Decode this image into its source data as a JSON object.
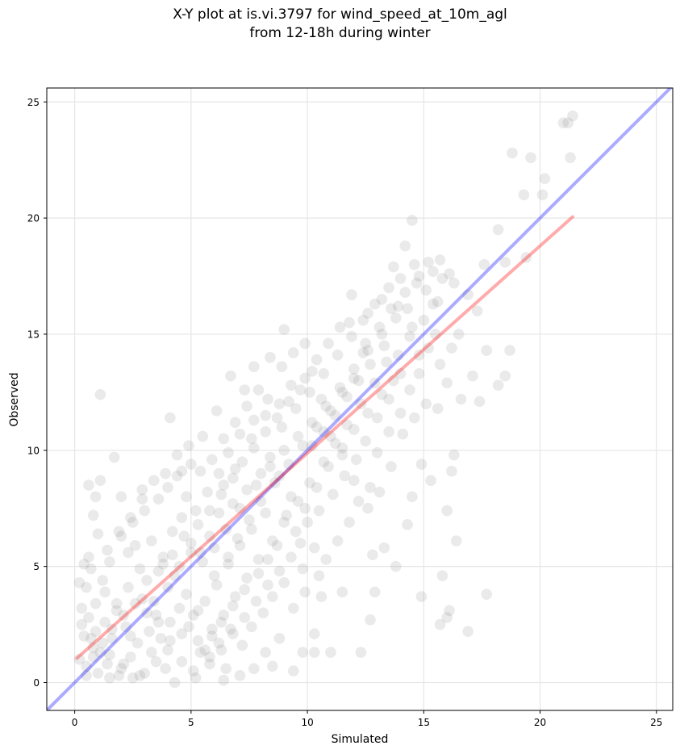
{
  "chart_data": {
    "type": "scatter",
    "title_lines": [
      "X-Y plot at is.vi.3797 for wind_speed_at_10m_agl",
      "from 12-18h during winter"
    ],
    "xlabel": "Simulated",
    "ylabel": "Observed",
    "xlim": [
      -1.2,
      25.7
    ],
    "ylim": [
      -1.2,
      25.6
    ],
    "xticks": [
      0,
      5,
      10,
      15,
      20,
      25
    ],
    "yticks": [
      0,
      5,
      10,
      15,
      20,
      25
    ],
    "grid": true,
    "marker_color": "#808080",
    "one_to_one_line": {
      "color": "#0000ff",
      "x": [
        -1.2,
        25.7
      ],
      "y": [
        -1.2,
        25.7
      ]
    },
    "fit_line": {
      "color": "#ff0000",
      "x": [
        0.1,
        21.4
      ],
      "y": [
        1.05,
        20.05
      ]
    },
    "points": [
      [
        1.1,
        12.4
      ],
      [
        1.7,
        9.7
      ],
      [
        0.6,
        8.5
      ],
      [
        0.9,
        8.0
      ],
      [
        1.1,
        8.7
      ],
      [
        0.8,
        7.2
      ],
      [
        2.0,
        8.0
      ],
      [
        2.9,
        8.3
      ],
      [
        0.4,
        5.1
      ],
      [
        0.7,
        4.9
      ],
      [
        1.2,
        4.4
      ],
      [
        1.5,
        5.2
      ],
      [
        2.3,
        5.6
      ],
      [
        0.3,
        3.2
      ],
      [
        0.6,
        2.8
      ],
      [
        0.9,
        2.2
      ],
      [
        1.3,
        2.6
      ],
      [
        1.8,
        3.1
      ],
      [
        2.4,
        2.0
      ],
      [
        0.2,
        1.0
      ],
      [
        0.5,
        0.7
      ],
      [
        1.0,
        0.4
      ],
      [
        1.5,
        1.2
      ],
      [
        2.1,
        0.8
      ],
      [
        2.8,
        0.3
      ],
      [
        3.3,
        1.3
      ],
      [
        3.9,
        0.6
      ],
      [
        4.3,
        0.0
      ],
      [
        5.1,
        0.5
      ],
      [
        5.6,
        1.4
      ],
      [
        6.4,
        0.1
      ],
      [
        0.4,
        2.0
      ],
      [
        0.8,
        1.5
      ],
      [
        1.6,
        1.9
      ],
      [
        2.2,
        2.4
      ],
      [
        2.9,
        3.6
      ],
      [
        3.5,
        2.9
      ],
      [
        3.1,
        4.4
      ],
      [
        2.6,
        5.9
      ],
      [
        3.8,
        5.1
      ],
      [
        4.2,
        6.5
      ],
      [
        4.6,
        7.1
      ],
      [
        5.0,
        6.0
      ],
      [
        5.4,
        5.6
      ],
      [
        5.8,
        6.3
      ],
      [
        6.2,
        7.3
      ],
      [
        4.1,
        11.4
      ],
      [
        4.6,
        9.1
      ],
      [
        5.0,
        9.4
      ],
      [
        5.5,
        10.6
      ],
      [
        6.1,
        11.7
      ],
      [
        6.7,
        13.2
      ],
      [
        7.3,
        12.6
      ],
      [
        7.7,
        13.6
      ],
      [
        6.9,
        9.2
      ],
      [
        6.4,
        8.5
      ],
      [
        6.8,
        7.7
      ],
      [
        7.4,
        8.3
      ],
      [
        8.0,
        9.0
      ],
      [
        8.4,
        9.7
      ],
      [
        7.6,
        10.5
      ],
      [
        8.2,
        11.5
      ],
      [
        8.8,
        12.0
      ],
      [
        9.3,
        12.8
      ],
      [
        9.0,
        15.2
      ],
      [
        9.9,
        14.6
      ],
      [
        10.2,
        13.4
      ],
      [
        10.6,
        12.2
      ],
      [
        11.0,
        11.7
      ],
      [
        11.5,
        12.5
      ],
      [
        12.0,
        13.1
      ],
      [
        12.4,
        14.2
      ],
      [
        11.8,
        15.5
      ],
      [
        12.6,
        15.9
      ],
      [
        13.2,
        16.5
      ],
      [
        13.7,
        17.9
      ],
      [
        14.2,
        18.8
      ],
      [
        14.5,
        19.9
      ],
      [
        13.9,
        16.2
      ],
      [
        14.7,
        17.2
      ],
      [
        15.2,
        18.1
      ],
      [
        15.8,
        17.4
      ],
      [
        16.3,
        17.2
      ],
      [
        15.5,
        15.0
      ],
      [
        16.5,
        15.0
      ],
      [
        14.8,
        14.1
      ],
      [
        14.0,
        13.3
      ],
      [
        13.5,
        12.2
      ],
      [
        13.0,
        11.4
      ],
      [
        12.5,
        10.4
      ],
      [
        12.1,
        9.6
      ],
      [
        11.6,
        8.9
      ],
      [
        11.1,
        8.1
      ],
      [
        10.5,
        7.4
      ],
      [
        10.0,
        6.9
      ],
      [
        9.5,
        6.5
      ],
      [
        9.1,
        7.2
      ],
      [
        8.7,
        5.9
      ],
      [
        8.3,
        5.3
      ],
      [
        7.9,
        4.7
      ],
      [
        7.3,
        4.0
      ],
      [
        6.8,
        3.3
      ],
      [
        6.3,
        2.6
      ],
      [
        5.9,
        2.0
      ],
      [
        5.4,
        1.3
      ],
      [
        6.0,
        4.6
      ],
      [
        6.6,
        5.4
      ],
      [
        7.0,
        6.2
      ],
      [
        7.5,
        7.0
      ],
      [
        8.0,
        7.8
      ],
      [
        8.6,
        8.6
      ],
      [
        9.2,
        9.4
      ],
      [
        9.8,
        10.2
      ],
      [
        10.4,
        11.0
      ],
      [
        11.0,
        10.6
      ],
      [
        11.5,
        9.8
      ],
      [
        12.0,
        8.7
      ],
      [
        12.6,
        7.5
      ],
      [
        13.1,
        8.2
      ],
      [
        13.6,
        9.3
      ],
      [
        14.1,
        10.7
      ],
      [
        14.6,
        11.4
      ],
      [
        15.1,
        12.0
      ],
      [
        15.6,
        11.8
      ],
      [
        16.0,
        12.9
      ],
      [
        16.6,
        12.2
      ],
      [
        17.1,
        13.2
      ],
      [
        17.4,
        12.1
      ],
      [
        17.7,
        14.3
      ],
      [
        18.2,
        12.8
      ],
      [
        18.5,
        13.2
      ],
      [
        18.7,
        14.3
      ],
      [
        17.3,
        16.0
      ],
      [
        16.9,
        16.7
      ],
      [
        17.6,
        18.0
      ],
      [
        18.2,
        19.5
      ],
      [
        18.5,
        18.1
      ],
      [
        19.4,
        18.3
      ],
      [
        19.3,
        21.0
      ],
      [
        20.1,
        21.0
      ],
      [
        20.2,
        21.7
      ],
      [
        18.8,
        22.8
      ],
      [
        19.6,
        22.6
      ],
      [
        21.3,
        22.6
      ],
      [
        21.0,
        24.1
      ],
      [
        21.2,
        24.1
      ],
      [
        21.4,
        24.4
      ],
      [
        16.2,
        9.1
      ],
      [
        16.3,
        9.8
      ],
      [
        16.4,
        6.1
      ],
      [
        16.0,
        7.4
      ],
      [
        15.3,
        8.7
      ],
      [
        14.9,
        9.4
      ],
      [
        14.5,
        8.0
      ],
      [
        14.3,
        6.8
      ],
      [
        13.8,
        5.0
      ],
      [
        13.3,
        5.8
      ],
      [
        12.9,
        3.9
      ],
      [
        12.8,
        5.5
      ],
      [
        12.7,
        2.7
      ],
      [
        12.3,
        1.3
      ],
      [
        11.5,
        3.9
      ],
      [
        11.0,
        1.3
      ],
      [
        10.3,
        2.1
      ],
      [
        10.3,
        1.3
      ],
      [
        9.8,
        1.3
      ],
      [
        9.4,
        0.5
      ],
      [
        9.9,
        3.9
      ],
      [
        10.5,
        4.6
      ],
      [
        10.6,
        3.7
      ],
      [
        14.9,
        3.7
      ],
      [
        15.7,
        2.5
      ],
      [
        16.0,
        2.8
      ],
      [
        16.1,
        3.1
      ],
      [
        15.8,
        4.6
      ],
      [
        16.9,
        2.2
      ],
      [
        17.7,
        3.8
      ],
      [
        2.0,
        6.3
      ],
      [
        2.5,
        6.9
      ],
      [
        3.0,
        7.4
      ],
      [
        3.6,
        7.9
      ],
      [
        4.0,
        8.4
      ],
      [
        4.4,
        8.9
      ],
      [
        4.8,
        8.0
      ],
      [
        5.2,
        7.4
      ],
      [
        5.7,
        8.2
      ],
      [
        6.2,
        9.0
      ],
      [
        6.6,
        9.9
      ],
      [
        7.1,
        10.7
      ],
      [
        7.7,
        11.3
      ],
      [
        8.3,
        12.2
      ],
      [
        8.9,
        11.0
      ],
      [
        9.5,
        11.8
      ],
      [
        10.1,
        12.5
      ],
      [
        10.7,
        13.3
      ],
      [
        11.3,
        14.1
      ],
      [
        11.9,
        14.9
      ],
      [
        12.5,
        14.6
      ],
      [
        13.1,
        15.3
      ],
      [
        13.6,
        16.1
      ],
      [
        14.2,
        16.8
      ],
      [
        14.8,
        17.5
      ],
      [
        15.4,
        16.3
      ],
      [
        13.4,
        13.8
      ],
      [
        12.9,
        12.9
      ],
      [
        12.3,
        12.0
      ],
      [
        11.7,
        11.1
      ],
      [
        11.2,
        10.3
      ],
      [
        10.7,
        9.5
      ],
      [
        10.1,
        8.6
      ],
      [
        9.6,
        7.8
      ],
      [
        9.0,
        6.9
      ],
      [
        8.5,
        6.1
      ],
      [
        7.9,
        5.3
      ],
      [
        7.4,
        4.5
      ],
      [
        6.9,
        3.7
      ],
      [
        6.4,
        2.9
      ],
      [
        5.9,
        2.3
      ],
      [
        5.3,
        3.1
      ],
      [
        4.8,
        3.8
      ],
      [
        4.3,
        4.6
      ],
      [
        3.8,
        5.4
      ],
      [
        3.3,
        6.1
      ],
      [
        2.8,
        4.9
      ],
      [
        2.3,
        4.1
      ],
      [
        1.8,
        3.4
      ],
      [
        1.3,
        3.9
      ],
      [
        0.9,
        3.4
      ],
      [
        0.5,
        4.1
      ],
      [
        0.3,
        2.5
      ],
      [
        0.7,
        1.9
      ],
      [
        1.1,
        1.3
      ],
      [
        1.4,
        0.8
      ],
      [
        1.9,
        0.3
      ],
      [
        2.4,
        1.1
      ],
      [
        2.7,
        1.7
      ],
      [
        3.2,
        2.2
      ],
      [
        3.7,
        1.9
      ],
      [
        4.1,
        2.6
      ],
      [
        4.5,
        3.2
      ],
      [
        4.9,
        2.4
      ],
      [
        5.3,
        1.8
      ],
      [
        5.8,
        1.1
      ],
      [
        6.2,
        1.7
      ],
      [
        6.7,
        2.3
      ],
      [
        7.2,
        1.6
      ],
      [
        7.6,
        2.4
      ],
      [
        8.1,
        3.0
      ],
      [
        8.5,
        3.7
      ],
      [
        9.0,
        4.3
      ],
      [
        9.4,
        3.2
      ],
      [
        9.8,
        4.9
      ],
      [
        8.8,
        1.9
      ],
      [
        8.2,
        1.3
      ],
      [
        7.7,
        0.6
      ],
      [
        8.5,
        0.7
      ],
      [
        7.1,
        0.3
      ],
      [
        6.5,
        0.6
      ],
      [
        3.4,
        3.5
      ],
      [
        4.0,
        4.1
      ],
      [
        4.5,
        5.0
      ],
      [
        5.0,
        5.6
      ],
      [
        5.5,
        5.2
      ],
      [
        6.0,
        5.8
      ],
      [
        6.5,
        6.6
      ],
      [
        7.1,
        7.5
      ],
      [
        7.8,
        8.5
      ],
      [
        8.4,
        9.3
      ],
      [
        9.0,
        10.0
      ],
      [
        9.6,
        10.6
      ],
      [
        10.2,
        11.2
      ],
      [
        10.8,
        11.9
      ],
      [
        11.4,
        12.7
      ],
      [
        12.0,
        13.5
      ],
      [
        12.6,
        14.3
      ],
      [
        13.2,
        15.0
      ],
      [
        13.8,
        15.7
      ],
      [
        14.4,
        14.9
      ],
      [
        15.0,
        15.6
      ],
      [
        15.6,
        16.4
      ],
      [
        16.1,
        17.6
      ],
      [
        15.7,
        18.2
      ],
      [
        14.6,
        18.0
      ],
      [
        14.0,
        17.4
      ],
      [
        13.5,
        17.0
      ],
      [
        12.9,
        16.3
      ],
      [
        12.4,
        15.6
      ],
      [
        11.9,
        16.7
      ],
      [
        11.4,
        15.3
      ],
      [
        10.9,
        14.6
      ],
      [
        10.4,
        13.9
      ],
      [
        9.9,
        13.1
      ],
      [
        9.4,
        14.2
      ],
      [
        8.9,
        13.6
      ],
      [
        8.4,
        14.0
      ],
      [
        7.9,
        12.6
      ],
      [
        7.4,
        11.9
      ],
      [
        6.9,
        11.2
      ],
      [
        6.4,
        10.5
      ],
      [
        5.9,
        9.6
      ],
      [
        5.4,
        9.1
      ],
      [
        4.9,
        10.2
      ],
      [
        4.4,
        9.8
      ],
      [
        3.9,
        9.0
      ],
      [
        3.4,
        8.7
      ],
      [
        2.9,
        7.9
      ],
      [
        2.4,
        7.1
      ],
      [
        1.9,
        6.5
      ],
      [
        1.4,
        5.7
      ],
      [
        1.0,
        6.4
      ],
      [
        0.6,
        5.4
      ],
      [
        0.2,
        4.3
      ],
      [
        11.3,
        6.1
      ],
      [
        11.8,
        6.9
      ],
      [
        12.2,
        7.8
      ],
      [
        12.7,
        8.4
      ],
      [
        13.0,
        9.9
      ],
      [
        13.5,
        10.8
      ],
      [
        14.0,
        11.6
      ],
      [
        14.4,
        12.6
      ],
      [
        14.8,
        13.3
      ],
      [
        15.2,
        14.4
      ],
      [
        15.7,
        13.7
      ],
      [
        16.2,
        14.4
      ],
      [
        10.8,
        5.3
      ],
      [
        10.3,
        5.8
      ],
      [
        9.7,
        6.0
      ],
      [
        9.3,
        5.4
      ],
      [
        8.8,
        4.8
      ],
      [
        8.3,
        4.2
      ],
      [
        7.8,
        3.5
      ],
      [
        7.3,
        2.8
      ],
      [
        6.8,
        2.1
      ],
      [
        6.3,
        1.4
      ],
      [
        5.8,
        0.8
      ],
      [
        5.2,
        0.2
      ],
      [
        4.6,
        0.9
      ],
      [
        4.0,
        1.4
      ],
      [
        3.5,
        0.9
      ],
      [
        3.0,
        0.4
      ],
      [
        2.5,
        0.2
      ],
      [
        2.0,
        0.6
      ],
      [
        1.5,
        0.2
      ],
      [
        3.6,
        4.8
      ],
      [
        4.2,
        5.5
      ],
      [
        4.7,
        6.3
      ],
      [
        5.3,
        6.8
      ],
      [
        5.8,
        7.4
      ],
      [
        6.3,
        8.1
      ],
      [
        6.8,
        8.8
      ],
      [
        7.2,
        9.5
      ],
      [
        7.7,
        10.1
      ],
      [
        8.2,
        10.8
      ],
      [
        8.7,
        11.4
      ],
      [
        9.2,
        12.1
      ],
      [
        9.7,
        12.6
      ],
      [
        10.2,
        10.2
      ],
      [
        10.7,
        10.8
      ],
      [
        11.2,
        11.5
      ],
      [
        11.7,
        12.3
      ],
      [
        12.2,
        13.0
      ],
      [
        12.7,
        13.7
      ],
      [
        13.3,
        14.5
      ],
      [
        13.9,
        14.1
      ],
      [
        14.5,
        15.3
      ],
      [
        15.1,
        16.9
      ],
      [
        15.4,
        17.7
      ],
      [
        14.3,
        16.1
      ],
      [
        13.7,
        13.0
      ],
      [
        13.2,
        12.4
      ],
      [
        12.6,
        11.6
      ],
      [
        12.0,
        10.9
      ],
      [
        11.5,
        10.1
      ],
      [
        10.9,
        9.3
      ],
      [
        10.4,
        8.4
      ],
      [
        9.9,
        7.5
      ],
      [
        9.3,
        8.0
      ],
      [
        8.8,
        8.9
      ],
      [
        8.2,
        7.3
      ],
      [
        7.6,
        6.6
      ],
      [
        7.1,
        5.9
      ],
      [
        6.6,
        5.1
      ],
      [
        6.1,
        4.2
      ],
      [
        5.6,
        3.5
      ],
      [
        5.1,
        2.9
      ],
      [
        4.6,
        2.1
      ],
      [
        4.1,
        1.8
      ],
      [
        3.6,
        2.6
      ],
      [
        3.1,
        3.0
      ],
      [
        2.6,
        3.4
      ],
      [
        2.1,
        2.9
      ],
      [
        1.6,
        2.3
      ],
      [
        1.2,
        1.7
      ],
      [
        0.8,
        1.1
      ],
      [
        0.5,
        0.3
      ]
    ]
  }
}
